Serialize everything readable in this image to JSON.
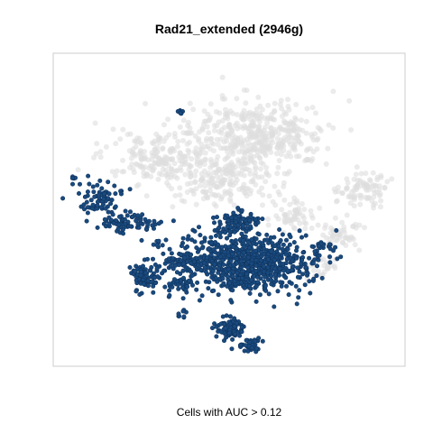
{
  "chart_data": {
    "type": "scatter",
    "title": "Rad21_extended (2946g)",
    "xlabel": "Cells with AUC > 0.12",
    "ylabel": "",
    "axes_visible": false,
    "grid": false,
    "colors": {
      "highlighted": "#1a4a7e",
      "highlighted_edge": "#0f3560",
      "background_cells": "#dedede"
    },
    "series": [
      {
        "role": "background",
        "clusters": [
          {
            "center": [
              0.58,
              0.26
            ],
            "spread": [
              0.16,
              0.09
            ],
            "count": 420
          },
          {
            "center": [
              0.31,
              0.33
            ],
            "spread": [
              0.14,
              0.07
            ],
            "count": 200
          },
          {
            "center": [
              0.47,
              0.41
            ],
            "spread": [
              0.13,
              0.07
            ],
            "count": 180
          },
          {
            "center": [
              0.88,
              0.43
            ],
            "spread": [
              0.06,
              0.05
            ],
            "count": 90
          },
          {
            "center": [
              0.82,
              0.58
            ],
            "spread": [
              0.05,
              0.04
            ],
            "count": 50
          },
          {
            "center": [
              0.68,
              0.52
            ],
            "spread": [
              0.06,
              0.04
            ],
            "count": 60
          },
          {
            "center": [
              0.76,
              0.68
            ],
            "spread": [
              0.04,
              0.03
            ],
            "count": 30
          }
        ]
      },
      {
        "role": "highlighted",
        "clusters": [
          {
            "center": [
              0.14,
              0.46
            ],
            "spread": [
              0.05,
              0.04
            ],
            "count": 70
          },
          {
            "center": [
              0.21,
              0.54
            ],
            "spread": [
              0.08,
              0.025
            ],
            "count": 80
          },
          {
            "center": [
              0.26,
              0.71
            ],
            "spread": [
              0.035,
              0.035
            ],
            "count": 90
          },
          {
            "center": [
              0.55,
              0.67
            ],
            "spread": [
              0.15,
              0.08
            ],
            "count": 780
          },
          {
            "center": [
              0.52,
              0.54
            ],
            "spread": [
              0.05,
              0.03
            ],
            "count": 90
          },
          {
            "center": [
              0.37,
              0.66
            ],
            "spread": [
              0.04,
              0.025
            ],
            "count": 60
          },
          {
            "center": [
              0.5,
              0.88
            ],
            "spread": [
              0.035,
              0.03
            ],
            "count": 90
          },
          {
            "center": [
              0.56,
              0.93
            ],
            "spread": [
              0.025,
              0.02
            ],
            "count": 40
          },
          {
            "center": [
              0.36,
              0.74
            ],
            "spread": [
              0.025,
              0.03
            ],
            "count": 30
          },
          {
            "center": [
              0.37,
              0.83
            ],
            "spread": [
              0.015,
              0.015
            ],
            "count": 8
          },
          {
            "center": [
              0.36,
              0.19
            ],
            "spread": [
              0.006,
              0.015
            ],
            "count": 6
          },
          {
            "center": [
              0.06,
              0.4
            ],
            "spread": [
              0.006,
              0.008
            ],
            "count": 4
          },
          {
            "center": [
              0.76,
              0.62
            ],
            "spread": [
              0.03,
              0.02
            ],
            "count": 20
          },
          {
            "center": [
              0.29,
              0.61
            ],
            "spread": [
              0.01,
              0.01
            ],
            "count": 5
          }
        ]
      }
    ]
  }
}
